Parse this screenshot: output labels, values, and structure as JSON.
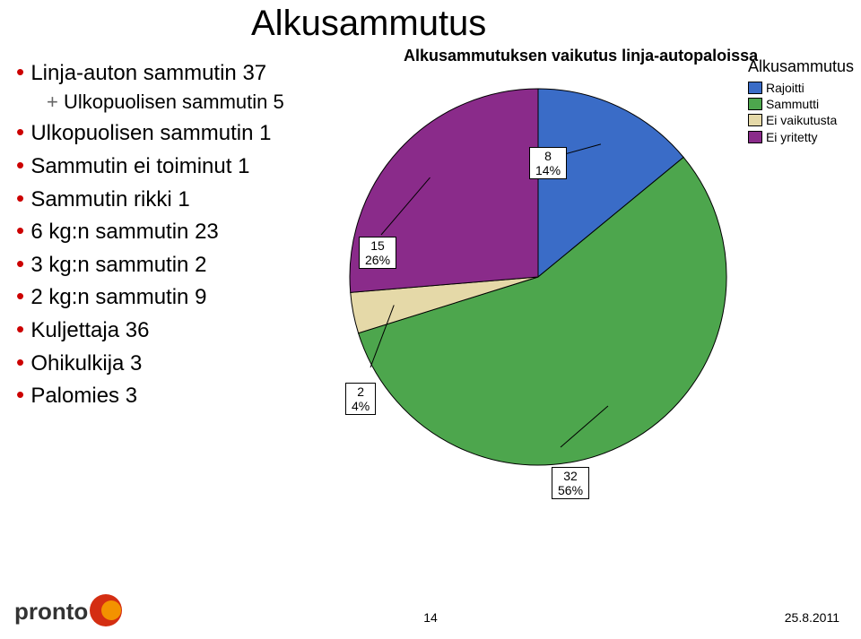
{
  "title": "Alkusammutus",
  "bullet_groups": [
    [
      {
        "text": "Linja-auton sammutin 37",
        "sub": false
      },
      {
        "text": "Ulkopuolisen sammutin 5",
        "sub": true
      },
      {
        "text": "Ulkopuolisen sammutin 1",
        "sub": false
      }
    ],
    [
      {
        "text": "Sammutin ei toiminut 1",
        "sub": false
      },
      {
        "text": "Sammutin rikki 1",
        "sub": false
      }
    ],
    [
      {
        "text": "6 kg:n sammutin 23",
        "sub": false
      },
      {
        "text": "3 kg:n sammutin 2",
        "sub": false
      },
      {
        "text": "2 kg:n sammutin 9",
        "sub": false
      }
    ],
    [
      {
        "text": "Kuljettaja 36",
        "sub": false
      },
      {
        "text": "Ohikulkija 3",
        "sub": false
      },
      {
        "text": "Palomies 3",
        "sub": false
      }
    ]
  ],
  "chart": {
    "title": "Alkusammutuksen vaikutus linja-autopaloissa",
    "type": "pie",
    "legend_title": "Alkusammutus",
    "slices": [
      {
        "label": "Rajoitti",
        "value": 8,
        "pct": 14,
        "color": "#3a6cc7"
      },
      {
        "label": "Sammutti",
        "value": 32,
        "pct": 56,
        "color": "#4da64d"
      },
      {
        "label": "Ei vaikutusta",
        "value": 2,
        "pct": 4,
        "color": "#e5d9a8"
      },
      {
        "label": "Ei yritetty",
        "value": 15,
        "pct": 26,
        "color": "#8a2b8a"
      }
    ],
    "stroke_color": "#000000",
    "stroke_width": 1,
    "background": "#ffffff",
    "callout_fontsize": 14
  },
  "footer": {
    "page": "14",
    "date": "25.8.2011",
    "logo_text": "pronto",
    "logo_color_outer": "#d42e12",
    "logo_color_inner": "#f39200"
  }
}
